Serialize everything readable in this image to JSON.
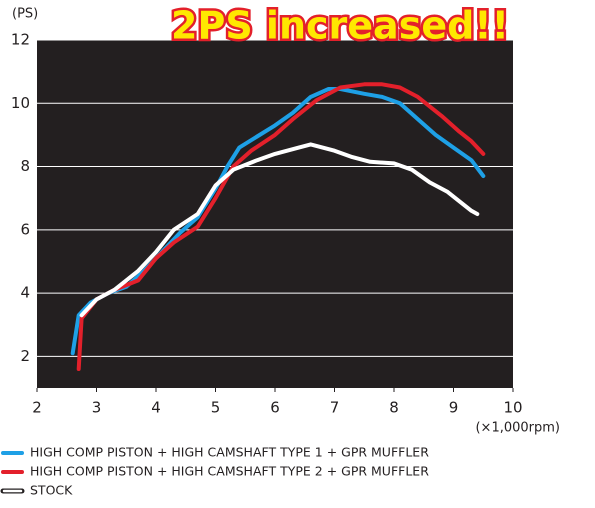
{
  "chart_data": {
    "type": "line",
    "annotation": "2PS increased!!",
    "ylabel": "(PS)",
    "xlabel": "(×1,000rpm)",
    "xlim": [
      2,
      10
    ],
    "xticks": [
      2,
      3,
      4,
      5,
      6,
      7,
      8,
      9,
      10
    ],
    "ylim": [
      1,
      12
    ],
    "yticks": [
      2,
      4,
      6,
      8,
      10,
      12
    ],
    "grid": true,
    "legend": "bottom",
    "background": "#231f20",
    "series": [
      {
        "name": "HIGH COMP PISTON + HIGH CAMSHAFT TYPE 1 + GPR MUFFLER",
        "color": "#1ea0e6",
        "x": [
          2.6,
          2.7,
          2.9,
          3.2,
          3.5,
          3.8,
          4.1,
          4.4,
          4.7,
          5.0,
          5.2,
          5.4,
          5.7,
          6.0,
          6.3,
          6.6,
          6.9,
          7.1,
          7.5,
          7.8,
          8.1,
          8.4,
          8.7,
          9.0,
          9.3,
          9.5
        ],
        "values": [
          2.1,
          3.3,
          3.7,
          4.0,
          4.2,
          4.7,
          5.3,
          5.9,
          6.4,
          7.3,
          8.0,
          8.6,
          8.95,
          9.3,
          9.7,
          10.2,
          10.45,
          10.45,
          10.3,
          10.2,
          10.0,
          9.5,
          9.0,
          8.6,
          8.2,
          7.7
        ]
      },
      {
        "name": "HIGH COMP PISTON + HIGH CAMSHAFT TYPE 2 + GPR MUFFLER",
        "color": "#e3202b",
        "x": [
          2.7,
          2.75,
          3.0,
          3.3,
          3.7,
          4.0,
          4.3,
          4.7,
          5.0,
          5.3,
          5.6,
          6.0,
          6.3,
          6.7,
          7.1,
          7.5,
          7.8,
          8.1,
          8.4,
          8.8,
          9.1,
          9.3,
          9.5
        ],
        "values": [
          1.6,
          3.2,
          3.8,
          4.1,
          4.4,
          5.1,
          5.6,
          6.1,
          7.0,
          8.0,
          8.5,
          9.0,
          9.5,
          10.1,
          10.5,
          10.6,
          10.6,
          10.5,
          10.2,
          9.6,
          9.1,
          8.8,
          8.4
        ]
      },
      {
        "name": "STOCK",
        "color": "#ffffff",
        "x": [
          2.75,
          3.0,
          3.3,
          3.7,
          4.0,
          4.3,
          4.7,
          5.0,
          5.3,
          5.7,
          6.0,
          6.4,
          6.6,
          7.0,
          7.3,
          7.6,
          8.0,
          8.3,
          8.6,
          8.9,
          9.1,
          9.3,
          9.4
        ],
        "values": [
          3.3,
          3.8,
          4.1,
          4.7,
          5.3,
          6.0,
          6.5,
          7.4,
          7.9,
          8.2,
          8.4,
          8.6,
          8.7,
          8.5,
          8.3,
          8.15,
          8.1,
          7.9,
          7.5,
          7.2,
          6.9,
          6.6,
          6.5
        ]
      }
    ]
  }
}
